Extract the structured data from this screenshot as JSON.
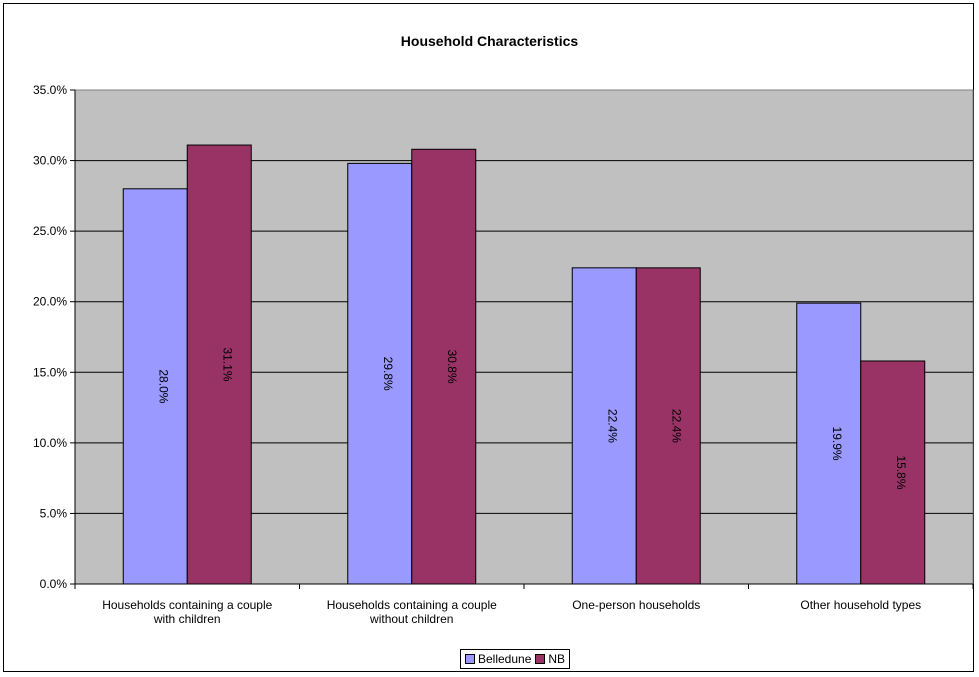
{
  "chart_data": {
    "type": "bar",
    "title": "Household Characteristics",
    "xlabel": "",
    "ylabel": "",
    "categories": [
      [
        "Households containing a couple",
        "with children"
      ],
      [
        "Households containing a couple",
        "without children"
      ],
      [
        "One-person households"
      ],
      [
        "Other household types"
      ]
    ],
    "series": [
      {
        "name": "Belledune",
        "color": "#9999ff",
        "values": [
          28.0,
          29.8,
          22.4,
          19.9
        ],
        "labels": [
          "28.0%",
          "29.8%",
          "22.4%",
          "19.9%"
        ]
      },
      {
        "name": "NB",
        "color": "#993366",
        "values": [
          31.1,
          30.8,
          22.4,
          15.8
        ],
        "labels": [
          "31.1%",
          "30.8%",
          "22.4%",
          "15.8%"
        ]
      }
    ],
    "ylim": [
      0,
      35
    ],
    "yticks": [
      "0.0%",
      "5.0%",
      "10.0%",
      "15.0%",
      "20.0%",
      "25.0%",
      "30.0%",
      "35.0%"
    ],
    "plot_background": "#c0c0c0",
    "grid": true,
    "legend_position": "bottom"
  }
}
